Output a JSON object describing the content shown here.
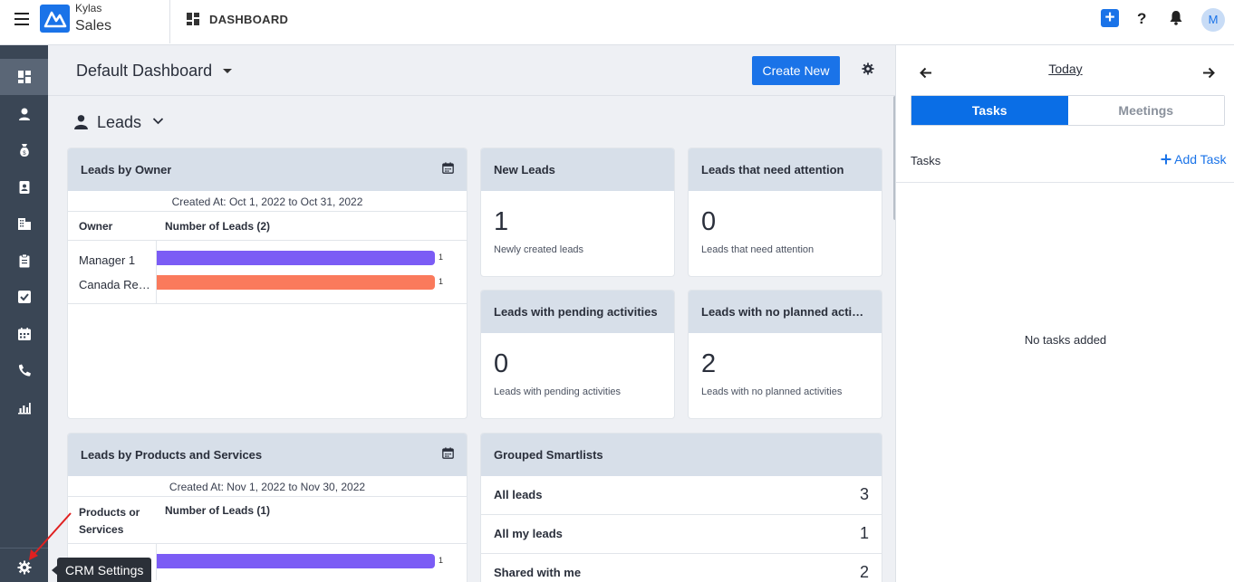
{
  "topbar": {
    "brand_top": "Kylas",
    "brand_bottom": "Sales",
    "page_label": "DASHBOARD",
    "add_symbol": "+",
    "help_symbol": "?",
    "avatar_initial": "M",
    "accent_color": "#1a73e8"
  },
  "sidebar": {
    "items": [
      {
        "name": "dashboard-icon",
        "active": true
      },
      {
        "name": "contacts-icon"
      },
      {
        "name": "deals-icon"
      },
      {
        "name": "address-book-icon"
      },
      {
        "name": "companies-icon"
      },
      {
        "name": "clipboard-icon"
      },
      {
        "name": "tasks-checkbox-icon"
      },
      {
        "name": "calendar-icon"
      },
      {
        "name": "phone-icon"
      },
      {
        "name": "reports-icon"
      },
      {
        "name": "settings-gear-icon"
      }
    ],
    "tooltip": "CRM Settings"
  },
  "main": {
    "dashboard_title": "Default Dashboard",
    "create_button": "Create New",
    "section_title": "Leads",
    "leads_by_owner": {
      "title": "Leads by Owner",
      "created_at": "Created At: Oct 1, 2022 to Oct 31, 2022",
      "col1": "Owner",
      "col2": "Number of Leads (2)",
      "rows": [
        {
          "label": "Manager 1",
          "value": "1",
          "color": "#7b5cf5"
        },
        {
          "label": "Canada Representative",
          "value": "1",
          "color": "#fa7a5c"
        }
      ]
    },
    "new_leads": {
      "title": "New Leads",
      "value": "1",
      "sub": "Newly created leads"
    },
    "attention": {
      "title": "Leads that need attention",
      "value": "0",
      "sub": "Leads that need attention"
    },
    "pending": {
      "title": "Leads with pending activities",
      "value": "0",
      "sub": "Leads with pending activities"
    },
    "no_planned": {
      "title": "Leads with no planned activities",
      "value": "2",
      "sub": "Leads with no planned activities"
    },
    "leads_by_products": {
      "title": "Leads by Products and Services",
      "created_at": "Created At: Nov 1, 2022 to Nov 30, 2022",
      "col1_line1": "Products or",
      "col1_line2": "Services",
      "col2": "Number of Leads (1)",
      "rows": [
        {
          "value": "1",
          "color": "#7b5cf5"
        }
      ]
    },
    "grouped": {
      "title": "Grouped Smartlists",
      "rows": [
        {
          "label": "All leads",
          "count": "3"
        },
        {
          "label": "All my leads",
          "count": "1"
        },
        {
          "label": "Shared with me",
          "count": "2"
        }
      ]
    }
  },
  "right_panel": {
    "day_label": "Today",
    "tab_tasks": "Tasks",
    "tab_meetings": "Meetings",
    "tasks_label": "Tasks",
    "add_task": "Add Task",
    "empty_text": "No tasks added"
  }
}
